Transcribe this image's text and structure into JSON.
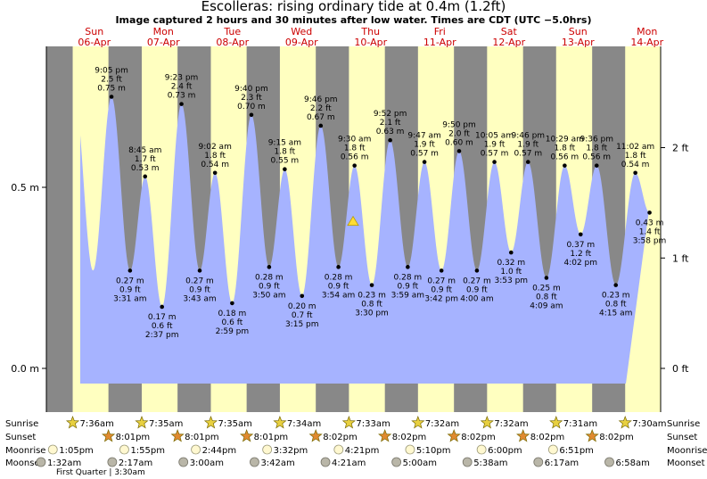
{
  "header": {
    "title": "Escolleras: rising  ordinary tide at 0.4m (1.2ft)",
    "subtitle": "Image captured 2 hours and 30 minutes after low water. Times are CDT (UTC −5.0hrs)"
  },
  "colors": {
    "night": "#888888",
    "day": "#ffffc0",
    "tide_fill": "#a6b3ff",
    "day_label": "#cc0000",
    "marker": "#ffdd33"
  },
  "chart_data": {
    "type": "area",
    "ylim": [
      -0.05,
      0.85
    ],
    "left_axis_ticks": [
      {
        "value": 0.5,
        "label": "0.5 m"
      },
      {
        "value": 0.0,
        "label": "0.0 m"
      }
    ],
    "right_axis_ticks": [
      {
        "value": 0.6096,
        "label": "2 ft"
      },
      {
        "value": 0.3048,
        "label": "1 ft"
      },
      {
        "value": 0.0,
        "label": "0 ft"
      }
    ],
    "days": [
      {
        "dow": "Sun",
        "date": "06-Apr"
      },
      {
        "dow": "Mon",
        "date": "07-Apr"
      },
      {
        "dow": "Tue",
        "date": "08-Apr"
      },
      {
        "dow": "Wed",
        "date": "09-Apr"
      },
      {
        "dow": "Thu",
        "date": "10-Apr"
      },
      {
        "dow": "Fri",
        "date": "11-Apr"
      },
      {
        "dow": "Sat",
        "date": "12-Apr"
      },
      {
        "dow": "Sun",
        "date": "13-Apr"
      },
      {
        "dow": "Mon",
        "date": "14-Apr"
      }
    ],
    "extremes": [
      {
        "type": "high",
        "day": 0,
        "time": "9:05 pm",
        "ft": "2.5 ft",
        "m": "0.75 m",
        "value": 0.75
      },
      {
        "type": "low",
        "day": 1,
        "time": "3:31 am",
        "ft": "0.9 ft",
        "m": "0.27 m",
        "value": 0.27
      },
      {
        "type": "high",
        "day": 1,
        "time": "8:45 am",
        "ft": "1.7 ft",
        "m": "0.53 m",
        "value": 0.53
      },
      {
        "type": "low",
        "day": 1,
        "time": "2:37 pm",
        "ft": "0.6 ft",
        "m": "0.17 m",
        "value": 0.17
      },
      {
        "type": "high",
        "day": 1,
        "time": "9:23 pm",
        "ft": "2.4 ft",
        "m": "0.73 m",
        "value": 0.73
      },
      {
        "type": "low",
        "day": 2,
        "time": "3:43 am",
        "ft": "0.9 ft",
        "m": "0.27 m",
        "value": 0.27
      },
      {
        "type": "high",
        "day": 2,
        "time": "9:02 am",
        "ft": "1.8 ft",
        "m": "0.54 m",
        "value": 0.54
      },
      {
        "type": "low",
        "day": 2,
        "time": "2:59 pm",
        "ft": "0.6 ft",
        "m": "0.18 m",
        "value": 0.18
      },
      {
        "type": "high",
        "day": 2,
        "time": "9:40 pm",
        "ft": "2.3 ft",
        "m": "0.70 m",
        "value": 0.7
      },
      {
        "type": "low",
        "day": 3,
        "time": "3:50 am",
        "ft": "0.9 ft",
        "m": "0.28 m",
        "value": 0.28
      },
      {
        "type": "high",
        "day": 3,
        "time": "9:15 am",
        "ft": "1.8 ft",
        "m": "0.55 m",
        "value": 0.55
      },
      {
        "type": "low",
        "day": 3,
        "time": "3:15 pm",
        "ft": "0.7 ft",
        "m": "0.20 m",
        "value": 0.2
      },
      {
        "type": "high",
        "day": 3,
        "time": "9:46 pm",
        "ft": "2.2 ft",
        "m": "0.67 m",
        "value": 0.67
      },
      {
        "type": "low",
        "day": 4,
        "time": "3:54 am",
        "ft": "0.9 ft",
        "m": "0.28 m",
        "value": 0.28
      },
      {
        "type": "high",
        "day": 4,
        "time": "9:30 am",
        "ft": "1.8 ft",
        "m": "0.56 m",
        "value": 0.56
      },
      {
        "type": "low",
        "day": 4,
        "time": "3:30 pm",
        "ft": "0.8 ft",
        "m": "0.23 m",
        "value": 0.23
      },
      {
        "type": "high",
        "day": 4,
        "time": "9:52 pm",
        "ft": "2.1 ft",
        "m": "0.63 m",
        "value": 0.63
      },
      {
        "type": "low",
        "day": 5,
        "time": "3:59 am",
        "ft": "0.9 ft",
        "m": "0.28 m",
        "value": 0.28
      },
      {
        "type": "high",
        "day": 5,
        "time": "9:47 am",
        "ft": "1.9 ft",
        "m": "0.57 m",
        "value": 0.57
      },
      {
        "type": "low",
        "day": 5,
        "time": "3:42 pm",
        "ft": "0.9 ft",
        "m": "0.27 m",
        "value": 0.27
      },
      {
        "type": "high",
        "day": 5,
        "time": "9:50 pm",
        "ft": "2.0 ft",
        "m": "0.60 m",
        "value": 0.6
      },
      {
        "type": "low",
        "day": 6,
        "time": "4:00 am",
        "ft": "0.9 ft",
        "m": "0.27 m",
        "value": 0.27
      },
      {
        "type": "high",
        "day": 6,
        "time": "10:05 am",
        "ft": "1.9 ft",
        "m": "0.57 m",
        "value": 0.57
      },
      {
        "type": "low",
        "day": 6,
        "time": "3:53 pm",
        "ft": "1.0 ft",
        "m": "0.32 m",
        "value": 0.32
      },
      {
        "type": "high",
        "day": 6,
        "time": "9:46 pm",
        "ft": "1.9 ft",
        "m": "0.57 m",
        "value": 0.57
      },
      {
        "type": "low",
        "day": 7,
        "time": "4:09 am",
        "ft": "0.8 ft",
        "m": "0.25 m",
        "value": 0.25
      },
      {
        "type": "high",
        "day": 7,
        "time": "10:29 am",
        "ft": "1.8 ft",
        "m": "0.56 m",
        "value": 0.56
      },
      {
        "type": "low",
        "day": 7,
        "time": "4:02 pm",
        "ft": "1.2 ft",
        "m": "0.37 m",
        "value": 0.37
      },
      {
        "type": "high",
        "day": 7,
        "time": "9:36 pm",
        "ft": "1.8 ft",
        "m": "0.56 m",
        "value": 0.56
      },
      {
        "type": "low",
        "day": 8,
        "time": "4:15 am",
        "ft": "0.8 ft",
        "m": "0.23 m",
        "value": 0.23
      },
      {
        "type": "high",
        "day": 8,
        "time": "11:02 am",
        "ft": "1.8 ft",
        "m": "0.54 m",
        "value": 0.54
      },
      {
        "type": "low",
        "day": 8,
        "time": "3:58 pm",
        "ft": "1.4 ft",
        "m": "0.43 m",
        "value": 0.43
      }
    ],
    "current": {
      "value": 0.4
    }
  },
  "almanac": {
    "row_labels": {
      "sunrise": "Sunrise",
      "sunset": "Sunset",
      "moonrise": "Moonrise",
      "moonset": "Moonset"
    },
    "sunrise": [
      "7:36am",
      "7:35am",
      "7:35am",
      "7:34am",
      "7:33am",
      "7:32am",
      "7:32am",
      "7:31am",
      "7:30am"
    ],
    "sunset": [
      "8:01pm",
      "8:01pm",
      "8:01pm",
      "8:02pm",
      "8:02pm",
      "8:02pm",
      "8:02pm",
      "8:02pm"
    ],
    "moonrise": [
      "1:05pm",
      "1:55pm",
      "2:44pm",
      "3:32pm",
      "4:21pm",
      "5:10pm",
      "6:00pm",
      "6:51pm"
    ],
    "moonset": [
      "1:32am",
      "2:17am",
      "3:00am",
      "3:42am",
      "4:21am",
      "5:00am",
      "5:38am",
      "6:17am",
      "6:58am"
    ],
    "moon_phase": "First Quarter | 3:30am"
  }
}
